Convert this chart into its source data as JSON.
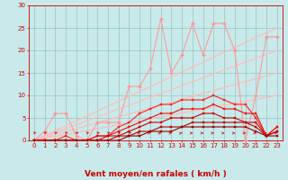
{
  "x": [
    0,
    1,
    2,
    3,
    4,
    5,
    6,
    7,
    8,
    9,
    10,
    11,
    12,
    13,
    14,
    15,
    16,
    17,
    18,
    19,
    20,
    21,
    22,
    23
  ],
  "series": [
    {
      "name": "ref_line1",
      "color": "#ffbbbb",
      "linewidth": 0.9,
      "marker": null,
      "y": [
        0,
        0.43,
        0.87,
        1.3,
        1.74,
        2.17,
        2.6,
        3.04,
        3.47,
        3.9,
        4.35,
        4.78,
        5.21,
        5.65,
        6.08,
        6.52,
        6.95,
        7.39,
        7.82,
        8.26,
        8.69,
        9.13,
        9.56,
        10.0
      ]
    },
    {
      "name": "ref_line2",
      "color": "#ffbbbb",
      "linewidth": 0.9,
      "marker": null,
      "y": [
        0,
        0.65,
        1.3,
        1.96,
        2.61,
        3.26,
        3.91,
        4.57,
        5.22,
        5.87,
        6.52,
        7.17,
        7.83,
        8.48,
        9.13,
        9.78,
        10.43,
        11.09,
        11.74,
        12.39,
        13.04,
        13.7,
        14.35,
        15.0
      ]
    },
    {
      "name": "ref_line3",
      "color": "#ffbbbb",
      "linewidth": 0.9,
      "marker": null,
      "y": [
        0,
        0.87,
        1.74,
        2.61,
        3.48,
        4.35,
        5.22,
        6.09,
        6.96,
        7.83,
        8.7,
        9.57,
        10.43,
        11.3,
        12.17,
        13.04,
        13.91,
        14.78,
        15.65,
        16.52,
        17.39,
        18.26,
        19.13,
        20.0
      ]
    },
    {
      "name": "ref_line4",
      "color": "#ffbbbb",
      "linewidth": 0.9,
      "marker": null,
      "y": [
        0,
        1.09,
        2.17,
        3.26,
        4.35,
        5.43,
        6.52,
        7.61,
        8.7,
        9.78,
        10.87,
        11.96,
        13.04,
        14.13,
        15.22,
        16.3,
        17.39,
        18.48,
        19.57,
        20.65,
        21.74,
        22.83,
        23.91,
        25.0
      ]
    },
    {
      "name": "pink_data",
      "color": "#ff9999",
      "linewidth": 0.8,
      "marker": "D",
      "markersize": 2.0,
      "y": [
        0,
        2,
        6,
        6,
        1,
        0,
        4,
        4,
        4,
        12,
        12,
        16,
        27,
        15,
        19,
        26,
        19,
        26,
        26,
        20,
        0,
        10,
        23,
        23
      ]
    },
    {
      "name": "red_data1",
      "color": "#ff2222",
      "linewidth": 0.8,
      "marker": "s",
      "markersize": 1.8,
      "y": [
        0,
        0,
        0,
        1,
        0,
        0,
        1,
        1,
        3,
        4,
        6,
        7,
        8,
        8,
        9,
        9,
        9,
        10,
        9,
        8,
        8,
        5,
        1,
        3
      ]
    },
    {
      "name": "red_data2",
      "color": "#ee1111",
      "linewidth": 0.8,
      "marker": "s",
      "markersize": 1.8,
      "y": [
        0,
        0,
        0,
        0,
        0,
        0,
        1,
        1,
        2,
        3,
        4,
        5,
        6,
        6,
        7,
        7,
        7,
        8,
        7,
        7,
        6,
        6,
        1,
        3
      ]
    },
    {
      "name": "red_data3",
      "color": "#cc0000",
      "linewidth": 0.8,
      "marker": "s",
      "markersize": 1.8,
      "y": [
        0,
        0,
        0,
        0,
        0,
        0,
        0,
        1,
        1,
        2,
        3,
        4,
        4,
        5,
        5,
        5,
        6,
        6,
        5,
        5,
        4,
        4,
        1,
        2
      ]
    },
    {
      "name": "red_data4",
      "color": "#bb0000",
      "linewidth": 0.8,
      "marker": "s",
      "markersize": 1.8,
      "y": [
        0,
        0,
        0,
        0,
        0,
        0,
        0,
        0,
        1,
        1,
        2,
        2,
        3,
        3,
        3,
        4,
        4,
        4,
        4,
        4,
        4,
        3,
        1,
        2
      ]
    },
    {
      "name": "darkred_data5",
      "color": "#990000",
      "linewidth": 0.8,
      "marker": "s",
      "markersize": 1.8,
      "y": [
        0,
        0,
        0,
        0,
        0,
        0,
        0,
        0,
        0,
        1,
        1,
        2,
        2,
        2,
        3,
        3,
        3,
        3,
        3,
        3,
        3,
        2,
        1,
        1
      ]
    }
  ],
  "xlabel": "Vent moyen/en rafales ( km/h )",
  "xlim": [
    -0.5,
    23.5
  ],
  "ylim": [
    0,
    30
  ],
  "yticks": [
    0,
    5,
    10,
    15,
    20,
    25,
    30
  ],
  "xticks": [
    0,
    1,
    2,
    3,
    4,
    5,
    6,
    7,
    8,
    9,
    10,
    11,
    12,
    13,
    14,
    15,
    16,
    17,
    18,
    19,
    20,
    21,
    22,
    23
  ],
  "bg_color": "#c8eaea",
  "grid_color": "#9bbfbf",
  "axis_color": "#cc0000",
  "text_color": "#cc0000",
  "xlabel_fontsize": 6.5,
  "tick_fontsize": 5.0
}
